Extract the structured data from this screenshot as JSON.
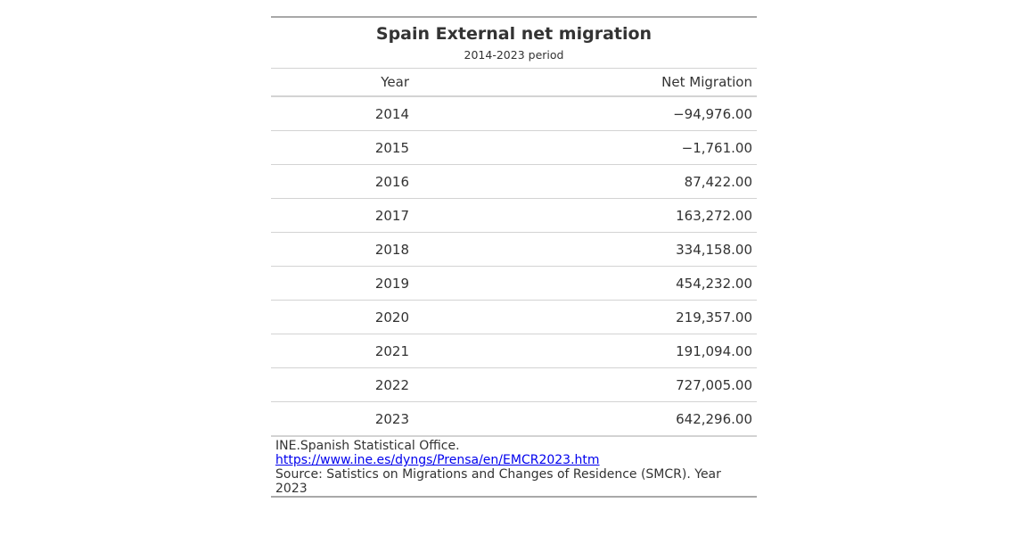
{
  "table": {
    "title": "Spain External net migration",
    "subtitle": "2014-2023 period",
    "columns": [
      "Year",
      "Net Migration"
    ],
    "rows": [
      {
        "year": "2014",
        "value": "−94,976.00"
      },
      {
        "year": "2015",
        "value": "−1,761.00"
      },
      {
        "year": "2016",
        "value": "87,422.00"
      },
      {
        "year": "2017",
        "value": "163,272.00"
      },
      {
        "year": "2018",
        "value": "334,158.00"
      },
      {
        "year": "2019",
        "value": "454,232.00"
      },
      {
        "year": "2020",
        "value": "219,357.00"
      },
      {
        "year": "2021",
        "value": "191,094.00"
      },
      {
        "year": "2022",
        "value": "727,005.00"
      },
      {
        "year": "2023",
        "value": "642,296.00"
      }
    ],
    "footnotes": {
      "line1_prefix": "INE.Spanish Statistical Office. ",
      "line1_link": "https://www.ine.es/dyngs/Prensa/en/EMCR2023.htm",
      "line2": "Source: Satistics on Migrations and Changes of Residence (SMCR). Year 2023"
    }
  },
  "colors": {
    "text": "#333333",
    "rule_outer": "#a8a8a8",
    "rule_inner": "#d3d3d3",
    "link": "#0000ee"
  }
}
